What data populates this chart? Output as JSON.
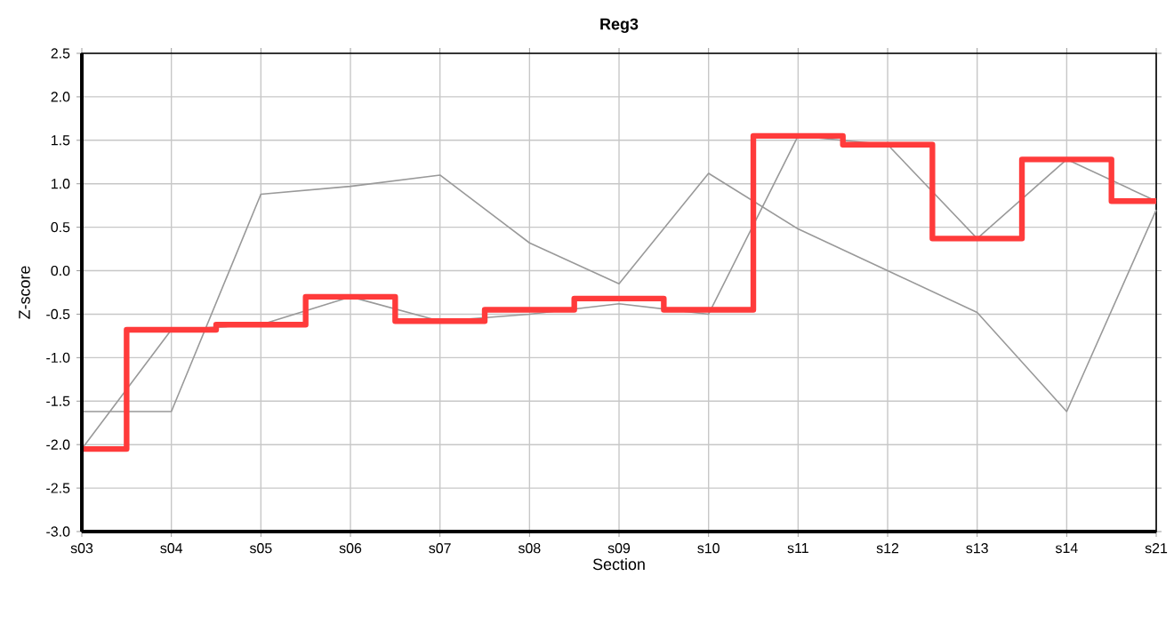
{
  "chart_data": {
    "type": "step",
    "title": "Reg3",
    "xlabel": "Section",
    "ylabel": "Z-score",
    "categories": [
      "s03",
      "s04",
      "s05",
      "s06",
      "s07",
      "s08",
      "s09",
      "s10",
      "s11",
      "s12",
      "s13",
      "s14",
      "s21"
    ],
    "ylim": [
      -3.0,
      2.5
    ],
    "yticks": [
      {
        "value": -3.0,
        "label": "-3.0"
      },
      {
        "value": -2.5,
        "label": "-2.5"
      },
      {
        "value": -2.0,
        "label": "-2.0"
      },
      {
        "value": -1.5,
        "label": "-1.5"
      },
      {
        "value": -1.0,
        "label": "-1.0"
      },
      {
        "value": -0.5,
        "label": "-0.5"
      },
      {
        "value": 0.0,
        "label": "0.0"
      },
      {
        "value": 0.5,
        "label": "0.5"
      },
      {
        "value": 1.0,
        "label": "1.0"
      },
      {
        "value": 1.5,
        "label": "1.5"
      },
      {
        "value": 2.0,
        "label": "2.0"
      },
      {
        "value": 2.5,
        "label": "2.5"
      }
    ],
    "grid": true,
    "series": [
      {
        "type": "line",
        "color": "#999999",
        "values": [
          -1.62,
          -1.62,
          0.88,
          0.97,
          1.1,
          0.32,
          -0.15,
          1.12,
          0.48,
          0.0,
          -0.48,
          -1.62,
          0.7
        ]
      },
      {
        "type": "line",
        "color": "#999999",
        "values": [
          -2.05,
          -0.68,
          -0.62,
          -0.3,
          -0.58,
          -0.5,
          -0.38,
          -0.5,
          1.55,
          1.45,
          0.37,
          1.28,
          0.8
        ]
      },
      {
        "color": "#ff3b3b",
        "values": [
          -2.05,
          -0.68,
          -0.62,
          -0.3,
          -0.58,
          -0.45,
          -0.32,
          -0.45,
          1.55,
          1.45,
          0.37,
          1.28,
          0.8
        ]
      }
    ]
  }
}
